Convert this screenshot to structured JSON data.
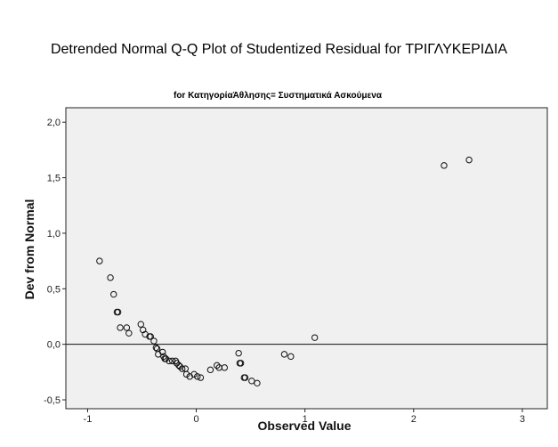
{
  "chart_data": {
    "type": "scatter",
    "title": "Detrended Normal Q-Q Plot of Studentized Residual for ΤΡΙΓΛΥΚΕΡΙΔΙΑ",
    "subtitle": "for ΚατηγορίαΆθλησης= Συστηματικά Ασκούμενα",
    "xlabel": "Observed Value",
    "ylabel": "Dev from Normal",
    "xlim": [
      -1.2,
      3.23
    ],
    "ylim": [
      -0.58,
      2.13
    ],
    "xticks": [
      -1,
      0,
      1,
      2,
      3
    ],
    "xtick_labels": [
      "-1",
      "0",
      "1",
      "2",
      "3"
    ],
    "yticks": [
      -0.5,
      0.0,
      0.5,
      1.0,
      1.5,
      2.0
    ],
    "ytick_labels": [
      "-0,5",
      "0,0",
      "0,5",
      "1,0",
      "1,5",
      "2,0"
    ],
    "reference_line_y": 0,
    "grid": false,
    "plot_background": "#f0f0f0",
    "marker": "open-circle",
    "points": [
      {
        "x": -0.89,
        "y": 0.75
      },
      {
        "x": -0.79,
        "y": 0.6
      },
      {
        "x": -0.76,
        "y": 0.45
      },
      {
        "x": -0.73,
        "y": 0.29
      },
      {
        "x": -0.72,
        "y": 0.29
      },
      {
        "x": -0.7,
        "y": 0.15
      },
      {
        "x": -0.64,
        "y": 0.15
      },
      {
        "x": -0.62,
        "y": 0.1
      },
      {
        "x": -0.51,
        "y": 0.18
      },
      {
        "x": -0.49,
        "y": 0.13
      },
      {
        "x": -0.47,
        "y": 0.09
      },
      {
        "x": -0.43,
        "y": 0.07
      },
      {
        "x": -0.42,
        "y": 0.07
      },
      {
        "x": -0.39,
        "y": 0.03
      },
      {
        "x": -0.37,
        "y": -0.03
      },
      {
        "x": -0.36,
        "y": -0.04
      },
      {
        "x": -0.35,
        "y": -0.09
      },
      {
        "x": -0.31,
        "y": -0.07
      },
      {
        "x": -0.3,
        "y": -0.11
      },
      {
        "x": -0.29,
        "y": -0.13
      },
      {
        "x": -0.28,
        "y": -0.13
      },
      {
        "x": -0.25,
        "y": -0.15
      },
      {
        "x": -0.22,
        "y": -0.15
      },
      {
        "x": -0.19,
        "y": -0.15
      },
      {
        "x": -0.18,
        "y": -0.17
      },
      {
        "x": -0.16,
        "y": -0.19
      },
      {
        "x": -0.15,
        "y": -0.2
      },
      {
        "x": -0.13,
        "y": -0.22
      },
      {
        "x": -0.1,
        "y": -0.22
      },
      {
        "x": -0.09,
        "y": -0.27
      },
      {
        "x": -0.06,
        "y": -0.29
      },
      {
        "x": -0.02,
        "y": -0.27
      },
      {
        "x": 0.01,
        "y": -0.29
      },
      {
        "x": 0.04,
        "y": -0.3
      },
      {
        "x": 0.13,
        "y": -0.23
      },
      {
        "x": 0.19,
        "y": -0.19
      },
      {
        "x": 0.21,
        "y": -0.21
      },
      {
        "x": 0.26,
        "y": -0.21
      },
      {
        "x": 0.39,
        "y": -0.08
      },
      {
        "x": 0.4,
        "y": -0.17
      },
      {
        "x": 0.41,
        "y": -0.17
      },
      {
        "x": 0.44,
        "y": -0.3
      },
      {
        "x": 0.45,
        "y": -0.3
      },
      {
        "x": 0.51,
        "y": -0.33
      },
      {
        "x": 0.56,
        "y": -0.35
      },
      {
        "x": 0.81,
        "y": -0.09
      },
      {
        "x": 0.87,
        "y": -0.11
      },
      {
        "x": 1.09,
        "y": 0.06
      },
      {
        "x": 2.28,
        "y": 1.61
      },
      {
        "x": 2.51,
        "y": 1.66
      }
    ]
  }
}
